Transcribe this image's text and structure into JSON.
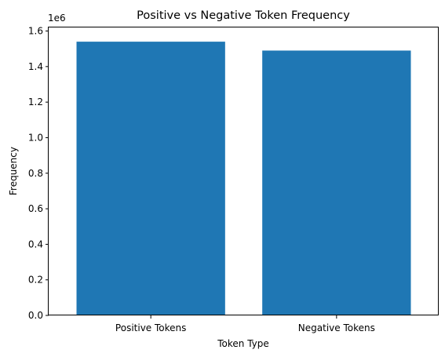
{
  "chart_data": {
    "type": "bar",
    "title": "Positive vs Negative Token Frequency",
    "xlabel": "Token Type",
    "ylabel": "Frequency",
    "categories": [
      "Positive Tokens",
      "Negative Tokens"
    ],
    "values": [
      1540000,
      1490000
    ],
    "ylim": [
      0,
      1620000
    ],
    "y_ticks": [
      0,
      200000,
      400000,
      600000,
      800000,
      1000000,
      1200000,
      1400000,
      1600000
    ],
    "y_tick_labels": [
      "0.0",
      "0.2",
      "0.4",
      "0.6",
      "0.8",
      "1.0",
      "1.2",
      "1.4",
      "1.6"
    ],
    "y_offset_label": "1e6",
    "grid": false,
    "bar_color": "#1f77b4"
  }
}
